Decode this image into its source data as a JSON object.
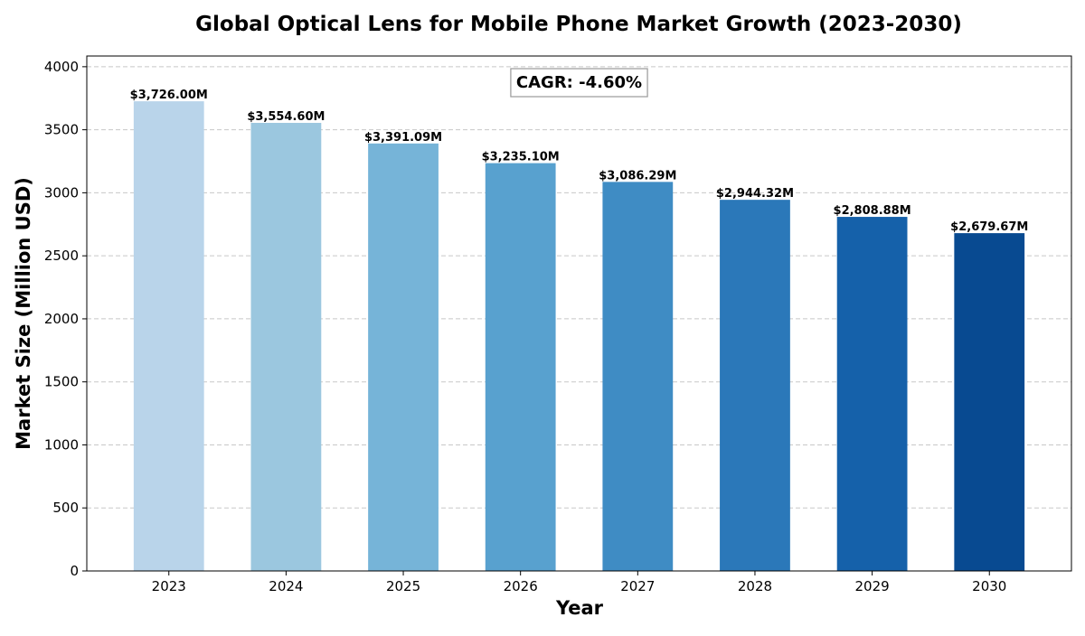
{
  "chart_data": {
    "type": "bar",
    "title": "Global Optical Lens for Mobile Phone Market Growth (2023-2030)",
    "xlabel": "Year",
    "ylabel": "Market Size (Million USD)",
    "categories": [
      "2023",
      "2024",
      "2025",
      "2026",
      "2027",
      "2028",
      "2029",
      "2030"
    ],
    "values": [
      3726.0,
      3554.6,
      3391.09,
      3235.1,
      3086.29,
      2944.32,
      2808.88,
      2679.67
    ],
    "data_labels": [
      "$3,726.00M",
      "$3,554.60M",
      "$3,391.09M",
      "$3,235.10M",
      "$3,086.29M",
      "$2,944.32M",
      "$2,808.88M",
      "$2,679.67M"
    ],
    "bar_colors": [
      "#b9d4ea",
      "#9bc7df",
      "#76b4d8",
      "#58a1cf",
      "#3f8cc4",
      "#2b78b9",
      "#1561aa",
      "#084a91"
    ],
    "yticks": [
      0,
      500,
      1000,
      1500,
      2000,
      2500,
      3000,
      3500,
      4000
    ],
    "ytick_labels": [
      "0",
      "500",
      "1000",
      "1500",
      "2000",
      "2500",
      "3000",
      "3500",
      "4000"
    ],
    "ylim": [
      0,
      4085
    ],
    "grid": true,
    "annotation": "CAGR: -4.60%",
    "annotation_placement": "top-center"
  }
}
